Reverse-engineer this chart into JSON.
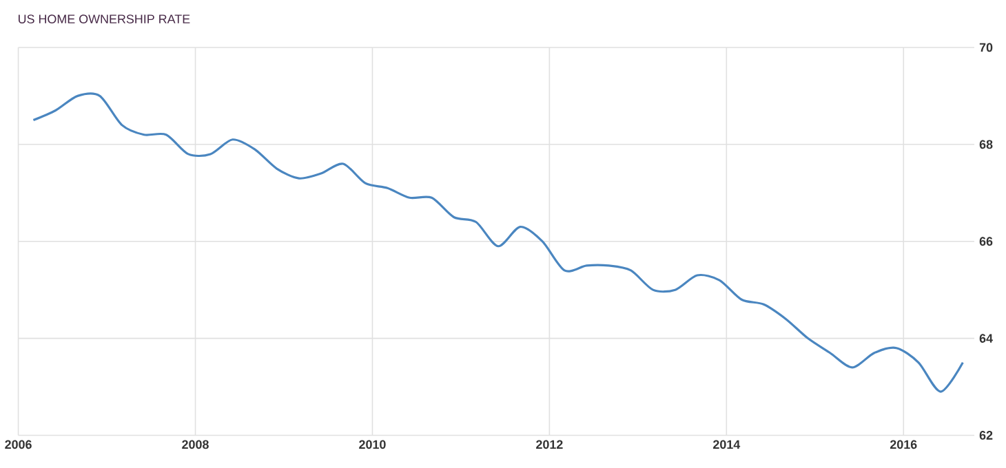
{
  "chart_data": {
    "type": "line",
    "title": "US HOME OWNERSHIP RATE",
    "x": [
      2006.17,
      2006.42,
      2006.67,
      2006.92,
      2007.17,
      2007.42,
      2007.67,
      2007.92,
      2008.17,
      2008.42,
      2008.67,
      2008.92,
      2009.17,
      2009.42,
      2009.67,
      2009.92,
      2010.17,
      2010.42,
      2010.67,
      2010.92,
      2011.17,
      2011.42,
      2011.67,
      2011.92,
      2012.17,
      2012.42,
      2012.67,
      2012.92,
      2013.17,
      2013.42,
      2013.67,
      2013.92,
      2014.17,
      2014.42,
      2014.67,
      2014.92,
      2015.17,
      2015.42,
      2015.67,
      2015.92,
      2016.17,
      2016.42,
      2016.67
    ],
    "series": [
      {
        "color": "#4a86c0",
        "values": [
          68.5,
          68.7,
          69.0,
          69.0,
          68.4,
          68.2,
          68.2,
          67.8,
          67.8,
          68.1,
          67.9,
          67.5,
          67.3,
          67.4,
          67.6,
          67.2,
          67.1,
          66.9,
          66.9,
          66.5,
          66.4,
          65.9,
          66.3,
          66.0,
          65.4,
          65.5,
          65.5,
          65.4,
          65.0,
          65.0,
          65.3,
          65.2,
          64.8,
          64.7,
          64.4,
          64.0,
          63.7,
          63.4,
          63.7,
          63.8,
          63.5,
          62.9,
          63.5
        ]
      }
    ],
    "xlim": [
      2006,
      2016.8
    ],
    "ylim": [
      62,
      70
    ],
    "xticks": [
      2006,
      2008,
      2010,
      2012,
      2014,
      2016
    ],
    "yticks": [
      62,
      64,
      66,
      68,
      70
    ],
    "grid": true,
    "marker": "none",
    "line_style": "solid"
  }
}
